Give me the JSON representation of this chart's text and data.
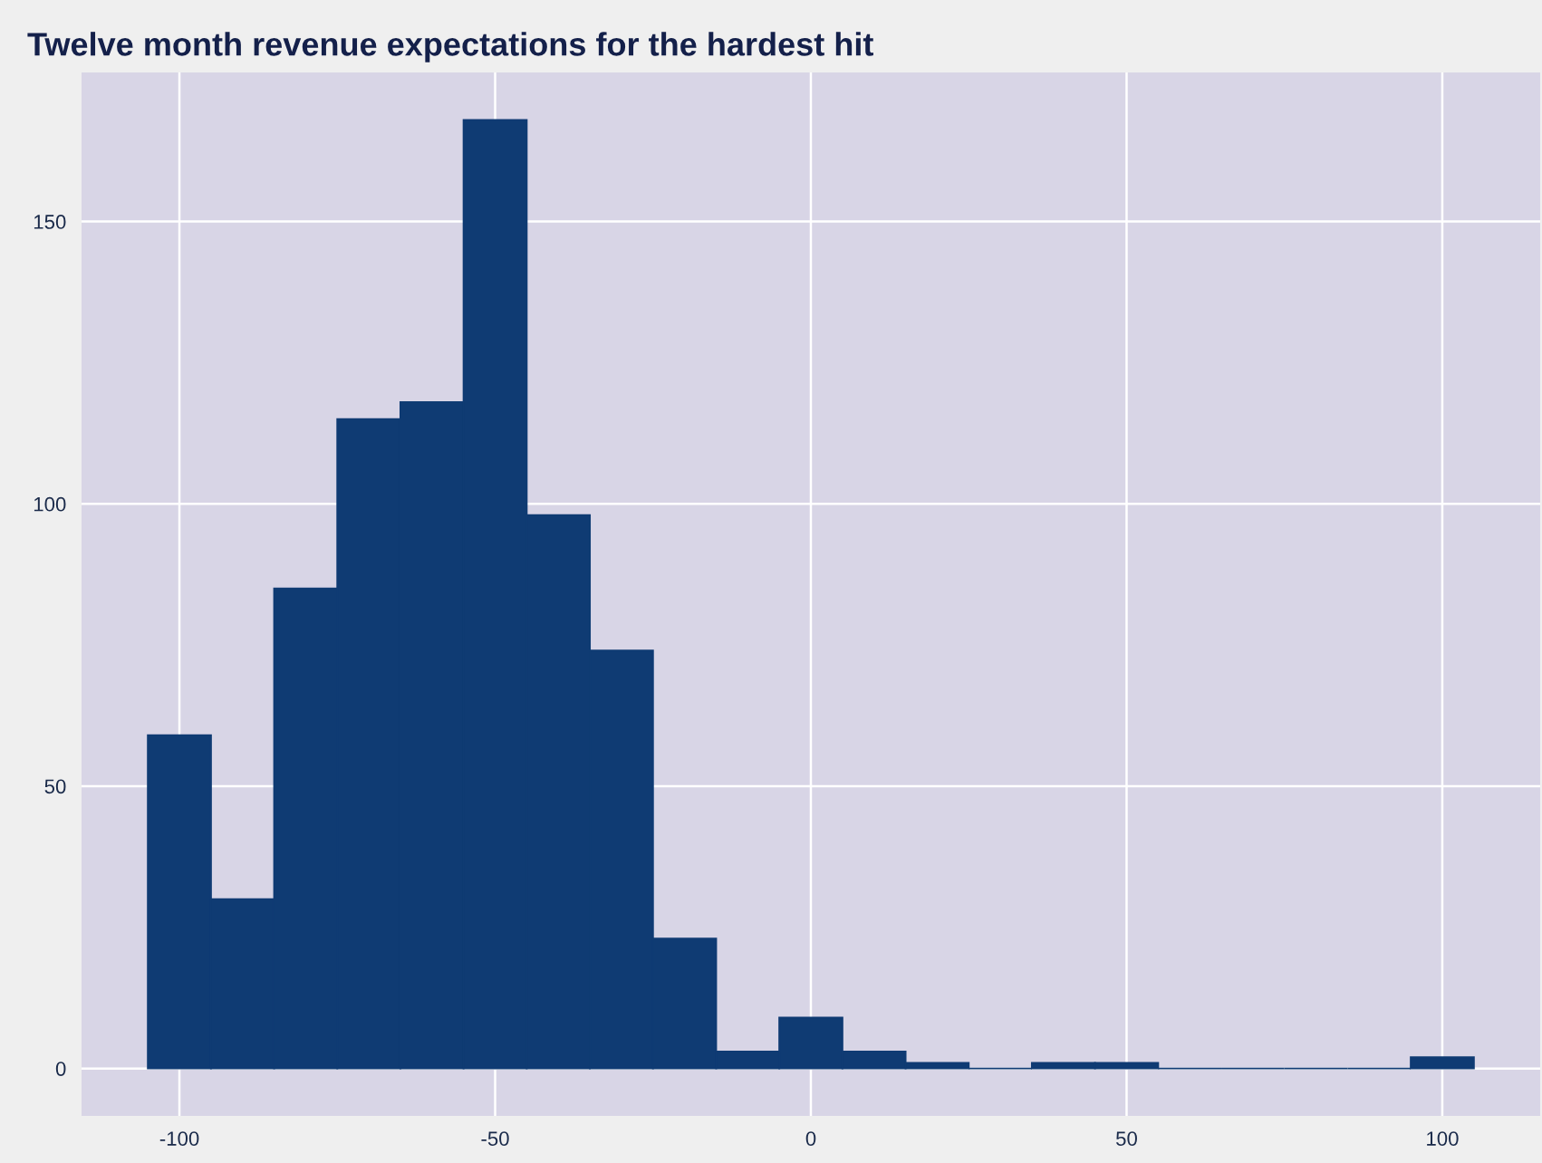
{
  "chart_data": {
    "type": "histogram",
    "title": "Twelve month revenue expectations for the hardest hit",
    "bins": [
      -105,
      -95,
      -85,
      -75,
      -65,
      -55,
      -45,
      -35,
      -25,
      -15,
      -5,
      5,
      15,
      25,
      35,
      45,
      55,
      65,
      75,
      85,
      95,
      105
    ],
    "values": [
      59,
      30,
      85,
      115,
      118,
      168,
      98,
      74,
      23,
      3,
      9,
      3,
      1,
      0,
      1,
      1,
      0,
      0,
      0,
      0,
      2
    ],
    "color": "#0f3b73",
    "xlim": [
      -115.5,
      115.5
    ],
    "xticks": [
      -100,
      -50,
      0,
      50,
      100
    ],
    "ylim": [
      -8.4,
      176.4
    ],
    "yticks": [
      0,
      50,
      100,
      150
    ],
    "grid": true
  }
}
